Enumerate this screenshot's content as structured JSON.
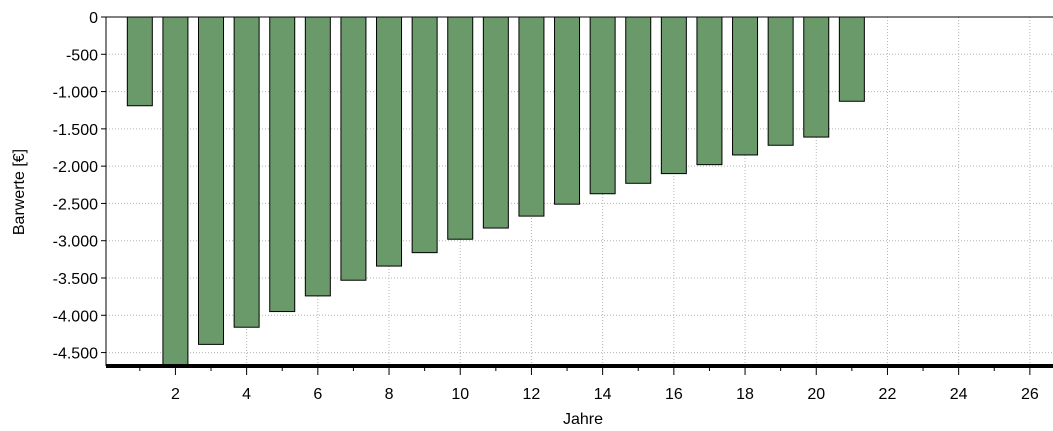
{
  "chart_data": {
    "type": "bar",
    "title": "",
    "xlabel": "Jahre",
    "ylabel": "Barwerte [€]",
    "x": [
      1,
      2,
      3,
      4,
      5,
      6,
      7,
      8,
      9,
      10,
      11,
      12,
      13,
      14,
      15,
      16,
      17,
      18,
      19,
      20,
      21
    ],
    "values": [
      -1190,
      -4700,
      -4390,
      -4160,
      -3950,
      -3740,
      -3530,
      -3340,
      -3160,
      -2980,
      -2830,
      -2670,
      -2510,
      -2370,
      -2230,
      -2100,
      -1980,
      -1850,
      -1720,
      -1610,
      -1130
    ],
    "xlim": [
      0.05,
      26.65
    ],
    "ylim": [
      -4680,
      0
    ],
    "x_ticks": [
      2,
      4,
      6,
      8,
      10,
      12,
      14,
      16,
      18,
      20,
      22,
      24,
      26
    ],
    "x_tick_labels": [
      "2",
      "4",
      "6",
      "8",
      "10",
      "12",
      "14",
      "16",
      "18",
      "20",
      "22",
      "24",
      "26"
    ],
    "y_ticks": [
      0,
      -500,
      -1000,
      -1500,
      -2000,
      -2500,
      -3000,
      -3500,
      -4000,
      -4500
    ],
    "y_tick_labels": [
      "0",
      "-500",
      "-1.000",
      "-1.500",
      "-2.000",
      "-2.500",
      "-3.000",
      "-3.500",
      "-4.000",
      "-4.500"
    ],
    "grid": true,
    "bar_color": "#6a9a6a",
    "bar_edge_color": "#000000",
    "legend": null
  }
}
